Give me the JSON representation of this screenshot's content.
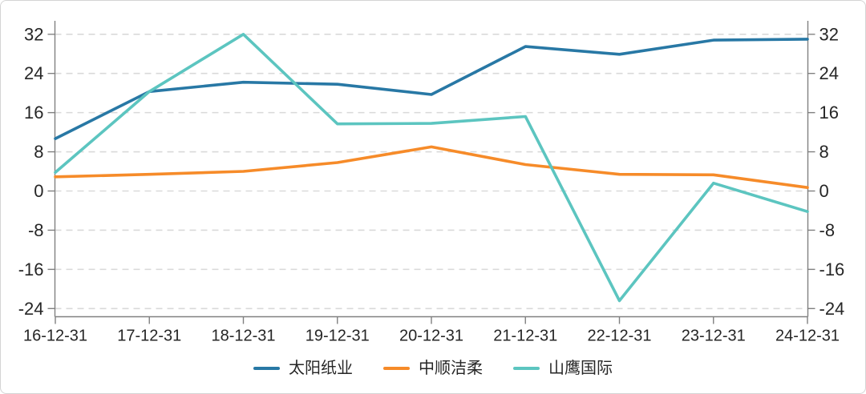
{
  "chart_data": {
    "type": "line",
    "title": "",
    "xlabel": "",
    "ylabel": "",
    "categories": [
      "16-12-31",
      "17-12-31",
      "18-12-31",
      "19-12-31",
      "20-12-31",
      "21-12-31",
      "22-12-31",
      "23-12-31",
      "24-12-31"
    ],
    "series": [
      {
        "name": "太阳纸业",
        "color": "#2878a5",
        "values": [
          10.7,
          20.3,
          22.2,
          21.8,
          19.7,
          29.5,
          27.9,
          30.8,
          31.0
        ]
      },
      {
        "name": "中顺洁柔",
        "color": "#f68b29",
        "values": [
          2.9,
          3.4,
          4.0,
          5.8,
          9.0,
          5.4,
          3.4,
          3.3,
          0.7
        ]
      },
      {
        "name": "山鹰国际",
        "color": "#5cc5c0",
        "values": [
          3.8,
          20.3,
          32.0,
          13.7,
          13.8,
          15.2,
          -22.4,
          1.6,
          -4.2
        ]
      }
    ],
    "y_ticks": [
      32,
      24,
      16,
      8,
      0,
      -8,
      -16,
      -24
    ],
    "ylim": [
      -25.8,
      34.7
    ],
    "dual_y_axis": true,
    "grid": "horizontal-dashed",
    "legend_position": "bottom"
  },
  "style": {
    "grid_color": "#d9d9d9",
    "axis_color": "#808080",
    "text_color": "#262626",
    "background_color": "#ffffff",
    "border_color": "#d4d4d4"
  }
}
